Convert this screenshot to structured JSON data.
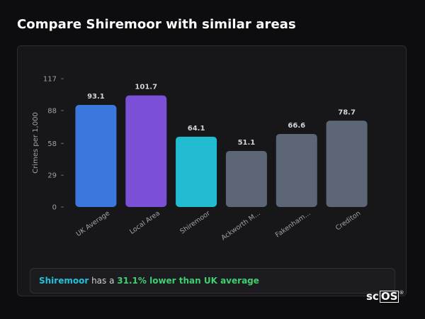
{
  "page": {
    "title": "Compare Shiremoor with similar areas"
  },
  "summary": {
    "area": "Shiremoor",
    "middle": " has a ",
    "comparison": "31.1% lower than UK average"
  },
  "brand": {
    "prefix": "sc",
    "boxed": "OS",
    "mark": "®"
  },
  "colors": {
    "uk_average": "#3b78dd",
    "local_area": "#7b4fd6",
    "shiremoor": "#22bcd2",
    "other": "#5d6676",
    "axis_text": "#a0a0a8",
    "value_label": "#d4d4d8"
  },
  "chart_data": {
    "type": "bar",
    "title": "",
    "xlabel": "",
    "ylabel": "Crimes per 1,000",
    "ylim": [
      0,
      117
    ],
    "yticks": [
      0,
      29,
      58,
      88,
      117
    ],
    "grid": false,
    "categories": [
      "UK Average",
      "Local Area",
      "Shiremoor",
      "Ackworth M...",
      "Fakenham...",
      "Crediton"
    ],
    "values": [
      93.1,
      101.7,
      64.1,
      51.1,
      66.6,
      78.7
    ],
    "value_labels": [
      "93.1",
      "101.7",
      "64.1",
      "51.1",
      "66.6",
      "78.7"
    ],
    "bar_colors": [
      "#3b78dd",
      "#7b4fd6",
      "#22bcd2",
      "#5d6676",
      "#5d6676",
      "#5d6676"
    ]
  }
}
